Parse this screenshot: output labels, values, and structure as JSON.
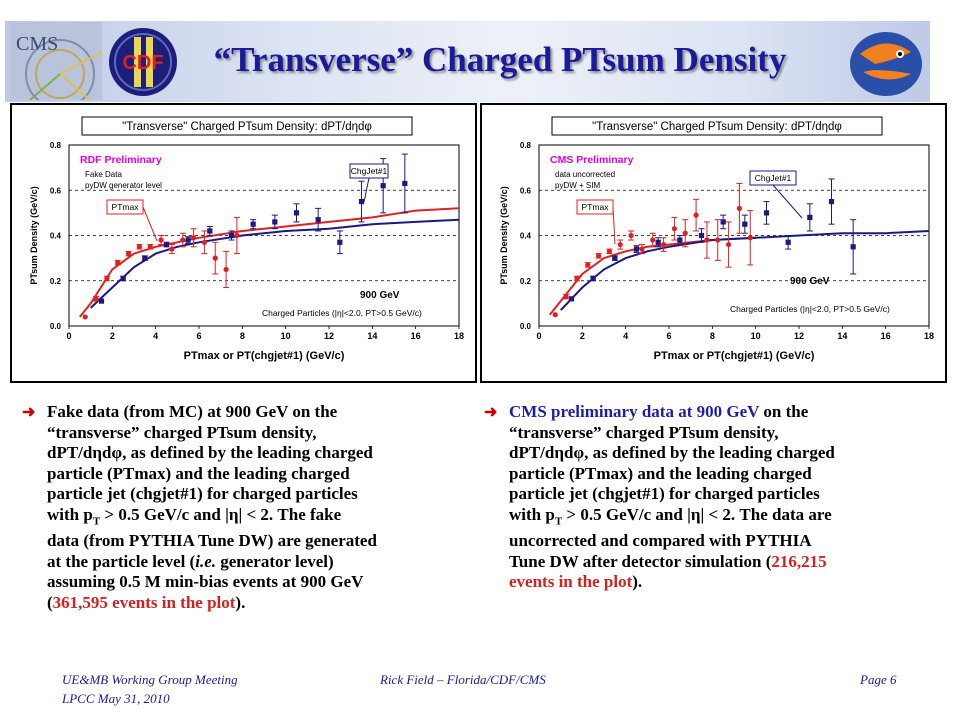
{
  "slide": {
    "title": "“Transverse” Charged PTsum Density",
    "logos": {
      "cms": "CMS",
      "cdf": "CDF"
    }
  },
  "bullets": {
    "left": {
      "p1": "Fake data (from MC) at 900 GeV on the",
      "p2": "“transverse” charged PTsum density,",
      "p3a": "dPT/d",
      "p3eta": "η",
      "p3d": "d",
      "p3phi": "φ",
      "p3b": ", as defined by the leading charged",
      "p4": "particle (PTmax) and the leading charged",
      "p5": "particle jet (chgjet#1) for charged particles",
      "p6a": "with p",
      "p6sub": "T",
      "p6b": " > 0.5 GeV/c and |",
      "p6eta": "η",
      "p6c": "| < 2.  The fake",
      "p7": "data (from PYTHIA Tune DW) are generated",
      "p8a": "at the particle level (",
      "p8ie": "i.e.",
      "p8b": " generator level)",
      "p9": "assuming 0.5 M min-bias events at 900 GeV",
      "p10a": "(",
      "p10red": "361,595 events in the plot",
      "p10b": ")."
    },
    "right": {
      "p1blue": "CMS preliminary data at  900 GeV",
      "p1b": " on the",
      "p2": "“transverse” charged PTsum density,",
      "p3a": "dPT/d",
      "p3eta": "η",
      "p3d": "d",
      "p3phi": "φ",
      "p3b": ", as defined by the leading charged",
      "p4": "particle (PTmax) and the leading charged",
      "p5": "particle jet (chgjet#1) for charged particles",
      "p6a": "with p",
      "p6sub": "T",
      "p6b": " > 0.5 GeV/c and |",
      "p6eta": "η",
      "p6c": "| < 2.  The data are",
      "p7": "uncorrected and compared with PYTHIA",
      "p8": "Tune DW after detector simulation (",
      "p8red": "216,215",
      "p9red": "events in the plot",
      "p9b": ")."
    }
  },
  "footer": {
    "left1": "UE&MB Working Group Meeting",
    "left2": "LPCC  May 31, 2010",
    "center": "Rick Field – Florida/CDF/CMS",
    "right": "Page 6"
  },
  "colors": {
    "pt_max": "#e02020",
    "chgjet": "#1a1a80",
    "title": "#1a1a9c"
  },
  "chart_data": [
    {
      "type": "scatter",
      "title": "\"Transverse\" Charged PTsum Density: dPT/dηdφ",
      "xlabel": "PTmax or PT(chgjet#1)  (GeV/c)",
      "ylabel": "PTsum Density (GeV/c)",
      "xlim": [
        0,
        18
      ],
      "ylim": [
        0,
        0.8
      ],
      "xticks": [
        "0",
        "2",
        "4",
        "6",
        "8",
        "10",
        "12",
        "14",
        "16",
        "18"
      ],
      "yticks": [
        "0.0",
        "0.2",
        "0.4",
        "0.6",
        "0.8"
      ],
      "preliminary": "RDF Preliminary",
      "notes": [
        "Fake Data",
        "pyDW generator level"
      ],
      "energy_label": "900 GeV",
      "cuts_label": "Charged Particles (|η|<2.0, PT>0.5 GeV/c)",
      "labels": {
        "ptmax": "PTmax",
        "chgjet": "ChgJet#1"
      },
      "series": [
        {
          "name": "PTmax",
          "color": "#e02020",
          "marker": "circle",
          "x": [
            0.75,
            1.25,
            1.75,
            2.25,
            2.75,
            3.25,
            3.75,
            4.25,
            4.75,
            5.25,
            5.75,
            6.25,
            6.75,
            7.25,
            7.75
          ],
          "y": [
            0.04,
            0.12,
            0.21,
            0.28,
            0.32,
            0.35,
            0.35,
            0.38,
            0.34,
            0.38,
            0.39,
            0.37,
            0.3,
            0.25,
            0.4
          ],
          "err": [
            0.005,
            0.01,
            0.01,
            0.01,
            0.01,
            0.01,
            0.01,
            0.02,
            0.02,
            0.03,
            0.04,
            0.05,
            0.07,
            0.08,
            0.08
          ]
        },
        {
          "name": "ChgJet#1",
          "color": "#1a1a80",
          "marker": "square",
          "x": [
            1.5,
            2.5,
            3.5,
            4.5,
            5.5,
            6.5,
            7.5,
            8.5,
            9.5,
            10.5,
            11.5,
            12.5,
            13.5,
            14.5,
            15.5
          ],
          "y": [
            0.11,
            0.21,
            0.3,
            0.36,
            0.38,
            0.42,
            0.4,
            0.45,
            0.46,
            0.5,
            0.47,
            0.37,
            0.55,
            0.62,
            0.63
          ],
          "err": [
            0.005,
            0.01,
            0.01,
            0.01,
            0.015,
            0.02,
            0.02,
            0.02,
            0.03,
            0.04,
            0.05,
            0.05,
            0.09,
            0.12,
            0.13
          ]
        }
      ],
      "curves": [
        {
          "name": "PTmax pyDW",
          "color": "#e02020",
          "x": [
            0.5,
            1,
            2,
            3,
            4,
            5,
            6,
            8,
            10,
            12,
            14,
            16,
            18
          ],
          "y": [
            0.04,
            0.1,
            0.25,
            0.32,
            0.35,
            0.37,
            0.39,
            0.42,
            0.44,
            0.46,
            0.48,
            0.51,
            0.52
          ]
        },
        {
          "name": "ChgJet#1 pyDW",
          "color": "#1a1a80",
          "x": [
            1,
            2,
            3,
            4,
            5,
            6,
            8,
            10,
            12,
            14,
            16,
            18
          ],
          "y": [
            0.08,
            0.17,
            0.26,
            0.32,
            0.35,
            0.37,
            0.4,
            0.42,
            0.43,
            0.45,
            0.46,
            0.47
          ]
        }
      ]
    },
    {
      "type": "scatter",
      "title": "\"Transverse\" Charged PTsum Density: dPT/dηdφ",
      "xlabel": "PTmax or PT(chgjet#1)  (GeV/c)",
      "ylabel": "PTsum Density (GeV/c)",
      "xlim": [
        0,
        18
      ],
      "ylim": [
        0,
        0.8
      ],
      "xticks": [
        "0",
        "2",
        "4",
        "6",
        "8",
        "10",
        "12",
        "14",
        "16",
        "18"
      ],
      "yticks": [
        "0.0",
        "0.2",
        "0.4",
        "0.6",
        "0.8"
      ],
      "preliminary": "CMS Preliminary",
      "notes": [
        "data uncorrected",
        "pyDW + SIM"
      ],
      "energy_label": "900 GeV",
      "cuts_label": "Charged Particles (|η|<2.0, PT>0.5 GeV/c)",
      "labels": {
        "ptmax": "PTmax",
        "chgjet": "ChgJet#1"
      },
      "series": [
        {
          "name": "PTmax",
          "color": "#e02020",
          "marker": "circle",
          "x": [
            0.75,
            1.25,
            1.75,
            2.25,
            2.75,
            3.25,
            3.75,
            4.25,
            4.75,
            5.25,
            5.75,
            6.25,
            6.75,
            7.25,
            7.75,
            8.25,
            8.75,
            9.25,
            9.75
          ],
          "y": [
            0.05,
            0.13,
            0.21,
            0.27,
            0.31,
            0.33,
            0.36,
            0.4,
            0.34,
            0.38,
            0.36,
            0.43,
            0.41,
            0.49,
            0.38,
            0.38,
            0.36,
            0.52,
            0.39
          ],
          "err": [
            0.005,
            0.01,
            0.01,
            0.01,
            0.01,
            0.01,
            0.02,
            0.02,
            0.02,
            0.03,
            0.03,
            0.05,
            0.06,
            0.07,
            0.08,
            0.09,
            0.1,
            0.11,
            0.12
          ]
        },
        {
          "name": "ChgJet#1",
          "color": "#1a1a80",
          "marker": "square",
          "x": [
            1.5,
            2.5,
            3.5,
            4.5,
            5.5,
            6.5,
            7.5,
            8.5,
            9.5,
            10.5,
            11.5,
            12.5,
            13.5,
            14.5
          ],
          "y": [
            0.12,
            0.21,
            0.3,
            0.34,
            0.37,
            0.38,
            0.4,
            0.46,
            0.45,
            0.5,
            0.37,
            0.48,
            0.55,
            0.35
          ],
          "err": [
            0.005,
            0.01,
            0.01,
            0.015,
            0.02,
            0.02,
            0.03,
            0.03,
            0.04,
            0.05,
            0.03,
            0.06,
            0.1,
            0.12
          ]
        }
      ],
      "curves": [
        {
          "name": "PTmax pyDW+SIM",
          "color": "#e02020",
          "x": [
            0.5,
            1,
            2,
            3,
            4,
            5,
            6,
            8,
            10
          ],
          "y": [
            0.05,
            0.11,
            0.23,
            0.3,
            0.33,
            0.35,
            0.36,
            0.38,
            0.39
          ]
        },
        {
          "name": "ChgJet#1 pyDW+SIM",
          "color": "#1a1a80",
          "x": [
            1,
            2,
            3,
            4,
            5,
            6,
            8,
            10,
            12,
            14,
            16,
            18
          ],
          "y": [
            0.07,
            0.17,
            0.25,
            0.3,
            0.33,
            0.35,
            0.38,
            0.39,
            0.4,
            0.41,
            0.41,
            0.42
          ]
        }
      ]
    }
  ]
}
